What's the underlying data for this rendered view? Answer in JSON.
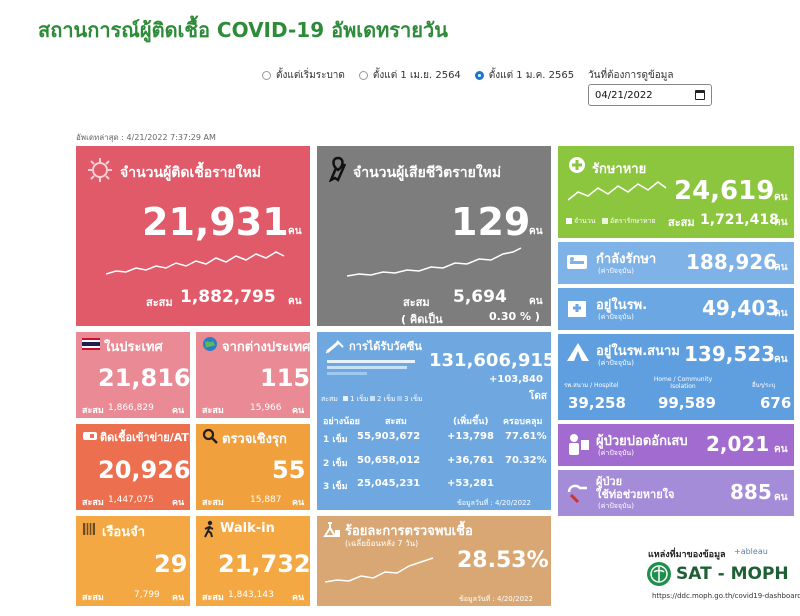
{
  "title": "สถานการณ์ผู้ติดเชื้อ COVID-19 อัพเดทรายวัน",
  "filters": {
    "options": [
      "ตั้งแต่เริ่มระบาด",
      "ตั้งแต่ 1 เม.ย. 2564",
      "ตั้งแต่ 1 ม.ค. 2565"
    ],
    "selected_index": 2,
    "date_label": "วันที่ต้องการดูข้อมูล",
    "date_value": "04/21/2022"
  },
  "updated": "อัพเดทล่าสุด : 4/21/2022 7:37:29 AM",
  "unit": "คน",
  "new_cases": {
    "title": "จำนวนผู้ติดเชื้อรายใหม่",
    "value": "21,931",
    "cum_label": "สะสม",
    "cum_value": "1,882,795"
  },
  "deaths": {
    "title": "จำนวนผู้เสียชีวิตรายใหม่",
    "value": "129",
    "cum_label": "สะสม",
    "cum_value": "5,694",
    "pct_label": "( คิดเป็น",
    "pct_value": "0.30 % )"
  },
  "recovered": {
    "title": "รักษาหาย",
    "value": "24,619",
    "legend_count": "จำนวน",
    "legend_rate": "อัตรารักษาหาย",
    "cum_label": "สะสม",
    "cum_value": "1,721,418"
  },
  "treating": {
    "title": "กำลังรักษา",
    "sub": "(ค่าปัจจุบัน)",
    "value": "188,926"
  },
  "hospital": {
    "title": "อยู่ในรพ.",
    "sub": "(ค่าปัจจุบัน)",
    "value": "49,403"
  },
  "field_hospital": {
    "title": "อยู่ในรพ.สนาม",
    "sub": "(ค่าปัจจุบัน)",
    "value": "139,523",
    "cols": [
      {
        "label": "รพ.สนาม / Hospitel",
        "value": "39,258"
      },
      {
        "label": "Home / Community Isolation",
        "value": "99,589"
      },
      {
        "label": "อื่นๆ/ระบุ",
        "value": "676"
      }
    ]
  },
  "severe": {
    "title": "ผู้ป่วยปอดอักเสบ",
    "sub": "(ค่าปัจจุบัน)",
    "value": "2,021"
  },
  "ventilator": {
    "title": "ผู้ป่วย",
    "title2": "ใช้ท่อช่วยหายใจ",
    "sub": "(ค่าปัจจุบัน)",
    "value": "885"
  },
  "domestic": {
    "title": "ในประเทศ",
    "value": "21,816",
    "cum_label": "สะสม",
    "cum_value": "1,866,829"
  },
  "imported": {
    "title": "จากต่างประเทศ",
    "value": "115",
    "cum_label": "สะสม",
    "cum_value": "15,966"
  },
  "atk": {
    "title": "ติดเชื้อเข้าข่าย/ATK",
    "value": "20,926",
    "cum_label": "สะสม",
    "cum_value": "1,447,075"
  },
  "active_search": {
    "title": "ตรวจเชิงรุก",
    "value": "55",
    "cum_label": "สะสม",
    "cum_value": "15,887"
  },
  "prison": {
    "title": "เรือนจำ",
    "value": "29",
    "cum_label": "สะสม",
    "cum_value": "7,799"
  },
  "walkin": {
    "title": "Walk-in",
    "value": "21,732",
    "cum_label": "สะสม",
    "cum_value": "1,843,143"
  },
  "vaccine": {
    "title": "การได้รับวัคซีน",
    "total": "131,606,915",
    "increase": "+103,840",
    "dose_unit": "โดส",
    "legend_cum": "สะสม",
    "legend": [
      "1 เข็ม",
      "2 เข็ม",
      "3 เข็ม"
    ],
    "headers": [
      "อย่างน้อย",
      "สะสม",
      "(เพิ่มขึ้น)",
      "ครอบคลุม"
    ],
    "rows": [
      {
        "dose": "1 เข็ม",
        "cum": "55,903,672",
        "inc": "+13,798",
        "cov": "77.61%"
      },
      {
        "dose": "2 เข็ม",
        "cum": "50,658,012",
        "inc": "+36,761",
        "cov": "70.32%"
      },
      {
        "dose": "3 เข็ม",
        "cum": "25,045,231",
        "inc": "+53,281",
        "cov": ""
      }
    ],
    "as_of": "ข้อมูลวันที่ : 4/20/2022"
  },
  "positivity": {
    "title": "ร้อยละการตรวจพบเชื้อ",
    "sub": "(เฉลี่ยย้อนหลัง 7 วัน)",
    "value": "28.53%",
    "as_of": "ข้อมูลวันที่ : 4/20/2022"
  },
  "source": {
    "label": "แหล่งที่มาของข้อมูล",
    "tableau": "+ableau",
    "org": "SAT - MOPH",
    "url": "https://ddc.moph.go.th/covid19-dashboard"
  },
  "colors": {
    "title": "#2e8b3a",
    "red": "#e05a69",
    "gray": "#7d7d7d",
    "green": "#8cc63e",
    "blue": "#6fa8e0",
    "orange": "#f0a03c"
  }
}
